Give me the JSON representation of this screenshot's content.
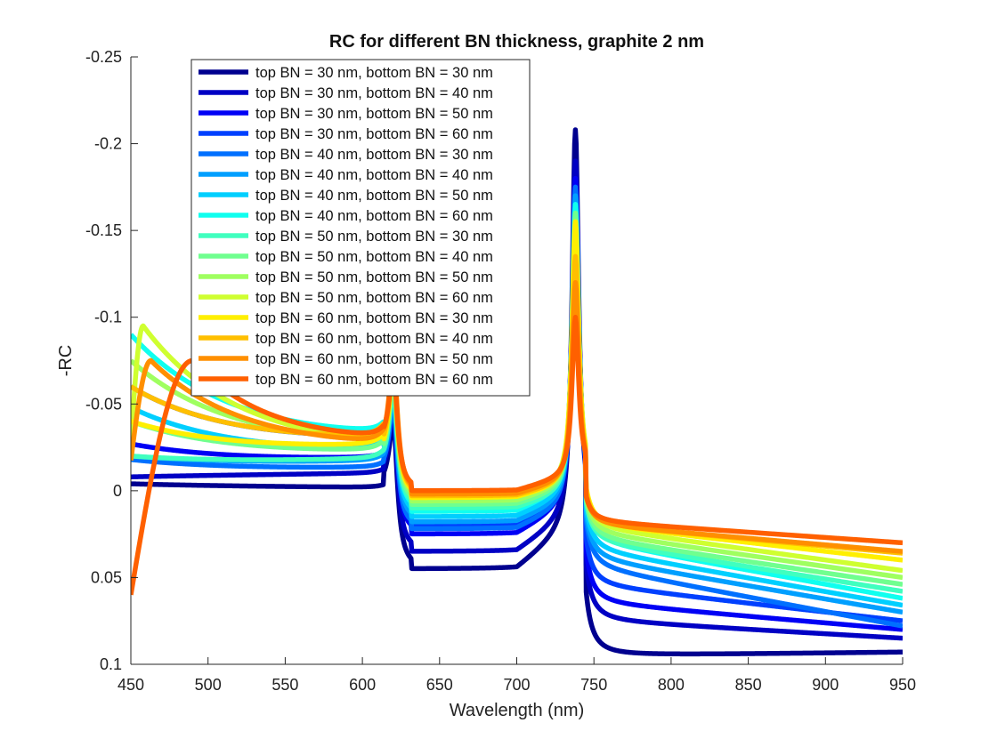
{
  "chart_data": {
    "type": "line",
    "title": "RC for different BN thickness, graphite 2 nm",
    "xlabel": "Wavelength (nm)",
    "ylabel": "-RC",
    "xlim": [
      450,
      950
    ],
    "ylim": [
      0.1,
      -0.25
    ],
    "y_axis_reversed": true,
    "x_ticks": [
      450,
      500,
      550,
      600,
      650,
      700,
      750,
      800,
      850,
      900,
      950
    ],
    "x_tick_labels": [
      "450",
      "500",
      "550",
      "600",
      "650",
      "700",
      "750",
      "800",
      "850",
      "900",
      "950"
    ],
    "y_ticks": [
      0.1,
      0.05,
      0,
      -0.05,
      -0.1,
      -0.15,
      -0.2,
      -0.25
    ],
    "y_tick_labels": [
      "0.1",
      "0.05",
      "0",
      "-0.05",
      "-0.1",
      "-0.15",
      "-0.2",
      "-0.25"
    ],
    "grid": false,
    "legend_position": "top-left",
    "series": [
      {
        "name": "top BN = 30 nm, bottom BN = 30 nm",
        "color": "#00008f",
        "baseline": 0.005,
        "peak1": -0.01,
        "mid": 0.045,
        "peak2": -0.208,
        "trough": 0.095,
        "tail": 0.093,
        "hump": -0.004,
        "hump_x": 450
      },
      {
        "name": "top BN = 30 nm, bottom BN = 40 nm",
        "color": "#0000c4",
        "baseline": -0.008,
        "peak1": -0.015,
        "mid": 0.035,
        "peak2": -0.19,
        "trough": 0.075,
        "tail": 0.085,
        "hump": -0.008,
        "hump_x": 450
      },
      {
        "name": "top BN = 30 nm, bottom BN = 50 nm",
        "color": "#0000f5",
        "baseline": -0.02,
        "peak1": -0.02,
        "mid": 0.025,
        "peak2": -0.18,
        "trough": 0.065,
        "tail": 0.08,
        "hump": -0.027,
        "hump_x": 450
      },
      {
        "name": "top BN = 30 nm, bottom BN = 60 nm",
        "color": "#0040ff",
        "baseline": -0.035,
        "peak1": -0.025,
        "mid": 0.02,
        "peak2": -0.17,
        "trough": 0.055,
        "tail": 0.075,
        "hump": -0.06,
        "hump_x": 450
      },
      {
        "name": "top BN = 40 nm, bottom BN = 30 nm",
        "color": "#0070ff",
        "baseline": -0.012,
        "peak1": -0.02,
        "mid": 0.022,
        "peak2": -0.175,
        "trough": 0.045,
        "tail": 0.078,
        "hump": -0.018,
        "hump_x": 450
      },
      {
        "name": "top BN = 40 nm, bottom BN = 40 nm",
        "color": "#009fff",
        "baseline": -0.018,
        "peak1": -0.025,
        "mid": 0.018,
        "peak2": -0.17,
        "trough": 0.04,
        "tail": 0.07,
        "hump": -0.02,
        "hump_x": 450
      },
      {
        "name": "top BN = 40 nm, bottom BN = 50 nm",
        "color": "#00cfff",
        "baseline": -0.025,
        "peak1": -0.03,
        "mid": 0.015,
        "peak2": -0.165,
        "trough": 0.035,
        "tail": 0.066,
        "hump": -0.048,
        "hump_x": 450
      },
      {
        "name": "top BN = 40 nm, bottom BN = 60 nm",
        "color": "#10ffef",
        "baseline": -0.035,
        "peak1": -0.035,
        "mid": 0.012,
        "peak2": -0.165,
        "trough": 0.03,
        "tail": 0.062,
        "hump": -0.09,
        "hump_x": 452
      },
      {
        "name": "top BN = 50 nm, bottom BN = 30 nm",
        "color": "#40ffbf",
        "baseline": -0.02,
        "peak1": -0.03,
        "mid": 0.01,
        "peak2": -0.16,
        "trough": 0.03,
        "tail": 0.058,
        "hump": -0.02,
        "hump_x": 450
      },
      {
        "name": "top BN = 50 nm, bottom BN = 40 nm",
        "color": "#70ff8f",
        "baseline": -0.025,
        "peak1": -0.035,
        "mid": 0.008,
        "peak2": -0.16,
        "trough": 0.028,
        "tail": 0.054,
        "hump": -0.04,
        "hump_x": 450
      },
      {
        "name": "top BN = 50 nm, bottom BN = 50 nm",
        "color": "#9fff60",
        "baseline": -0.03,
        "peak1": -0.04,
        "mid": 0.006,
        "peak2": -0.155,
        "trough": 0.025,
        "tail": 0.05,
        "hump": -0.075,
        "hump_x": 450
      },
      {
        "name": "top BN = 50 nm, bottom BN = 60 nm",
        "color": "#cfff30",
        "baseline": -0.04,
        "peak1": -0.045,
        "mid": 0.004,
        "peak2": -0.155,
        "trough": 0.022,
        "tail": 0.046,
        "hump": -0.095,
        "hump_x": 458
      },
      {
        "name": "top BN = 60 nm, bottom BN = 30 nm",
        "color": "#ffef00",
        "baseline": -0.03,
        "peak1": -0.04,
        "mid": 0.004,
        "peak2": -0.155,
        "trough": 0.02,
        "tail": 0.04,
        "hump": -0.04,
        "hump_x": 450
      },
      {
        "name": "top BN = 60 nm, bottom BN = 40 nm",
        "color": "#ffbf00",
        "baseline": -0.035,
        "peak1": -0.045,
        "mid": 0.003,
        "peak2": -0.135,
        "trough": 0.02,
        "tail": 0.036,
        "hump": -0.06,
        "hump_x": 450
      },
      {
        "name": "top BN = 60 nm, bottom BN = 50 nm",
        "color": "#ff8f00",
        "baseline": -0.042,
        "peak1": -0.048,
        "mid": 0.002,
        "peak2": -0.12,
        "trough": 0.02,
        "tail": 0.035,
        "hump": -0.075,
        "hump_x": 463
      },
      {
        "name": "top BN = 60 nm, bottom BN = 60 nm",
        "color": "#ff6000",
        "baseline": -0.05,
        "peak1": -0.04,
        "mid": 0.0,
        "peak2": -0.1,
        "trough": 0.018,
        "tail": 0.03,
        "hump": -0.075,
        "hump_x": 490
      }
    ]
  }
}
